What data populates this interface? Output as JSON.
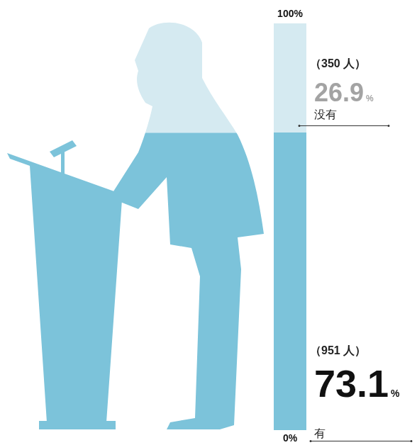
{
  "chart_data": {
    "type": "bar",
    "stacked": true,
    "categories": [
      null
    ],
    "series": [
      {
        "name": "有",
        "color": "#7cc3da",
        "values": [
          73.1
        ],
        "value_labels": [
          "73.1%"
        ],
        "count_labels": [
          "（951 人）"
        ]
      },
      {
        "name": "没有",
        "color": "#d5eaf1",
        "values": [
          26.9
        ],
        "value_labels": [
          "26.9%"
        ],
        "count_labels": [
          "（350 人）"
        ]
      }
    ],
    "ylim": [
      0,
      100
    ],
    "yticks": [
      {
        "value": 0,
        "label": "0%"
      },
      {
        "value": 100,
        "label": "100%"
      }
    ],
    "tick_labels": "y",
    "grid": false,
    "data_labels": true
  }
}
